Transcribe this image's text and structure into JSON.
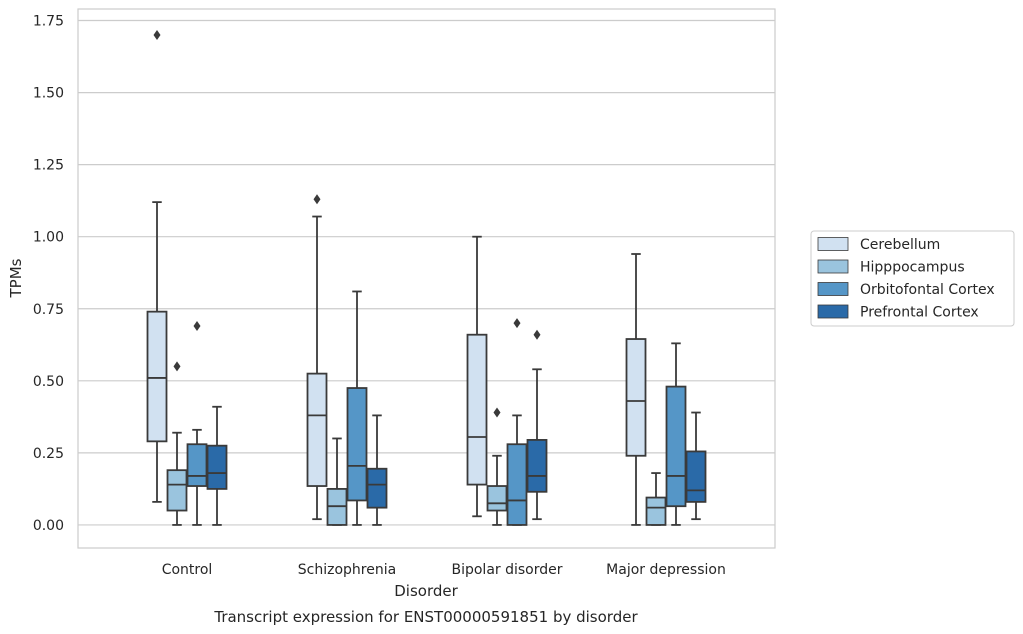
{
  "chart_data": {
    "type": "boxplot",
    "xlabel": "Disorder",
    "ylabel": "TPMs",
    "caption": "Transcript expression for ENST00000591851 by disorder",
    "ylim": [
      -0.08,
      1.79
    ],
    "yticks": [
      "0.00",
      "0.25",
      "0.50",
      "0.75",
      "1.00",
      "1.25",
      "1.50",
      "1.75"
    ],
    "ytick_values": [
      0,
      0.25,
      0.5,
      0.75,
      1.0,
      1.25,
      1.5,
      1.75
    ],
    "grid": "horizontal",
    "legend_position": "right",
    "categories": [
      "Control",
      "Schizophrenia",
      "Bipolar disorder",
      "Major depression"
    ],
    "series": [
      {
        "name": "Cerebellum",
        "color": "#d1e1f1",
        "boxes": [
          {
            "whislo": 0.08,
            "q1": 0.29,
            "med": 0.51,
            "q3": 0.74,
            "whishi": 1.12,
            "fliers": [
              1.7
            ]
          },
          {
            "whislo": 0.02,
            "q1": 0.135,
            "med": 0.38,
            "q3": 0.525,
            "whishi": 1.07,
            "fliers": [
              1.13
            ]
          },
          {
            "whislo": 0.03,
            "q1": 0.14,
            "med": 0.305,
            "q3": 0.66,
            "whishi": 1.0,
            "fliers": []
          },
          {
            "whislo": 0.0,
            "q1": 0.24,
            "med": 0.43,
            "q3": 0.645,
            "whishi": 0.94,
            "fliers": []
          }
        ]
      },
      {
        "name": "Hipppocampus",
        "color": "#9ac4de",
        "boxes": [
          {
            "whislo": 0.0,
            "q1": 0.05,
            "med": 0.14,
            "q3": 0.19,
            "whishi": 0.32,
            "fliers": [
              0.55
            ]
          },
          {
            "whislo": 0.0,
            "q1": 0.0,
            "med": 0.065,
            "q3": 0.125,
            "whishi": 0.3,
            "fliers": []
          },
          {
            "whislo": 0.0,
            "q1": 0.05,
            "med": 0.075,
            "q3": 0.135,
            "whishi": 0.24,
            "fliers": [
              0.39
            ]
          },
          {
            "whislo": 0.0,
            "q1": 0.0,
            "med": 0.06,
            "q3": 0.095,
            "whishi": 0.18,
            "fliers": []
          }
        ]
      },
      {
        "name": "Orbitofontal Cortex",
        "color": "#5596c7",
        "boxes": [
          {
            "whislo": 0.0,
            "q1": 0.135,
            "med": 0.17,
            "q3": 0.28,
            "whishi": 0.33,
            "fliers": [
              0.69
            ]
          },
          {
            "whislo": 0.0,
            "q1": 0.085,
            "med": 0.205,
            "q3": 0.475,
            "whishi": 0.81,
            "fliers": []
          },
          {
            "whislo": 0.0,
            "q1": 0.0,
            "med": 0.085,
            "q3": 0.28,
            "whishi": 0.38,
            "fliers": [
              0.7
            ]
          },
          {
            "whislo": 0.0,
            "q1": 0.065,
            "med": 0.17,
            "q3": 0.48,
            "whishi": 0.63,
            "fliers": []
          }
        ]
      },
      {
        "name": "Prefrontal Cortex",
        "color": "#2a6aa8",
        "boxes": [
          {
            "whislo": 0.0,
            "q1": 0.125,
            "med": 0.18,
            "q3": 0.275,
            "whishi": 0.41,
            "fliers": []
          },
          {
            "whislo": 0.0,
            "q1": 0.06,
            "med": 0.14,
            "q3": 0.195,
            "whishi": 0.38,
            "fliers": []
          },
          {
            "whislo": 0.02,
            "q1": 0.115,
            "med": 0.17,
            "q3": 0.295,
            "whishi": 0.54,
            "fliers": [
              0.66
            ]
          },
          {
            "whislo": 0.02,
            "q1": 0.08,
            "med": 0.12,
            "q3": 0.255,
            "whishi": 0.39,
            "fliers": []
          }
        ]
      }
    ]
  }
}
